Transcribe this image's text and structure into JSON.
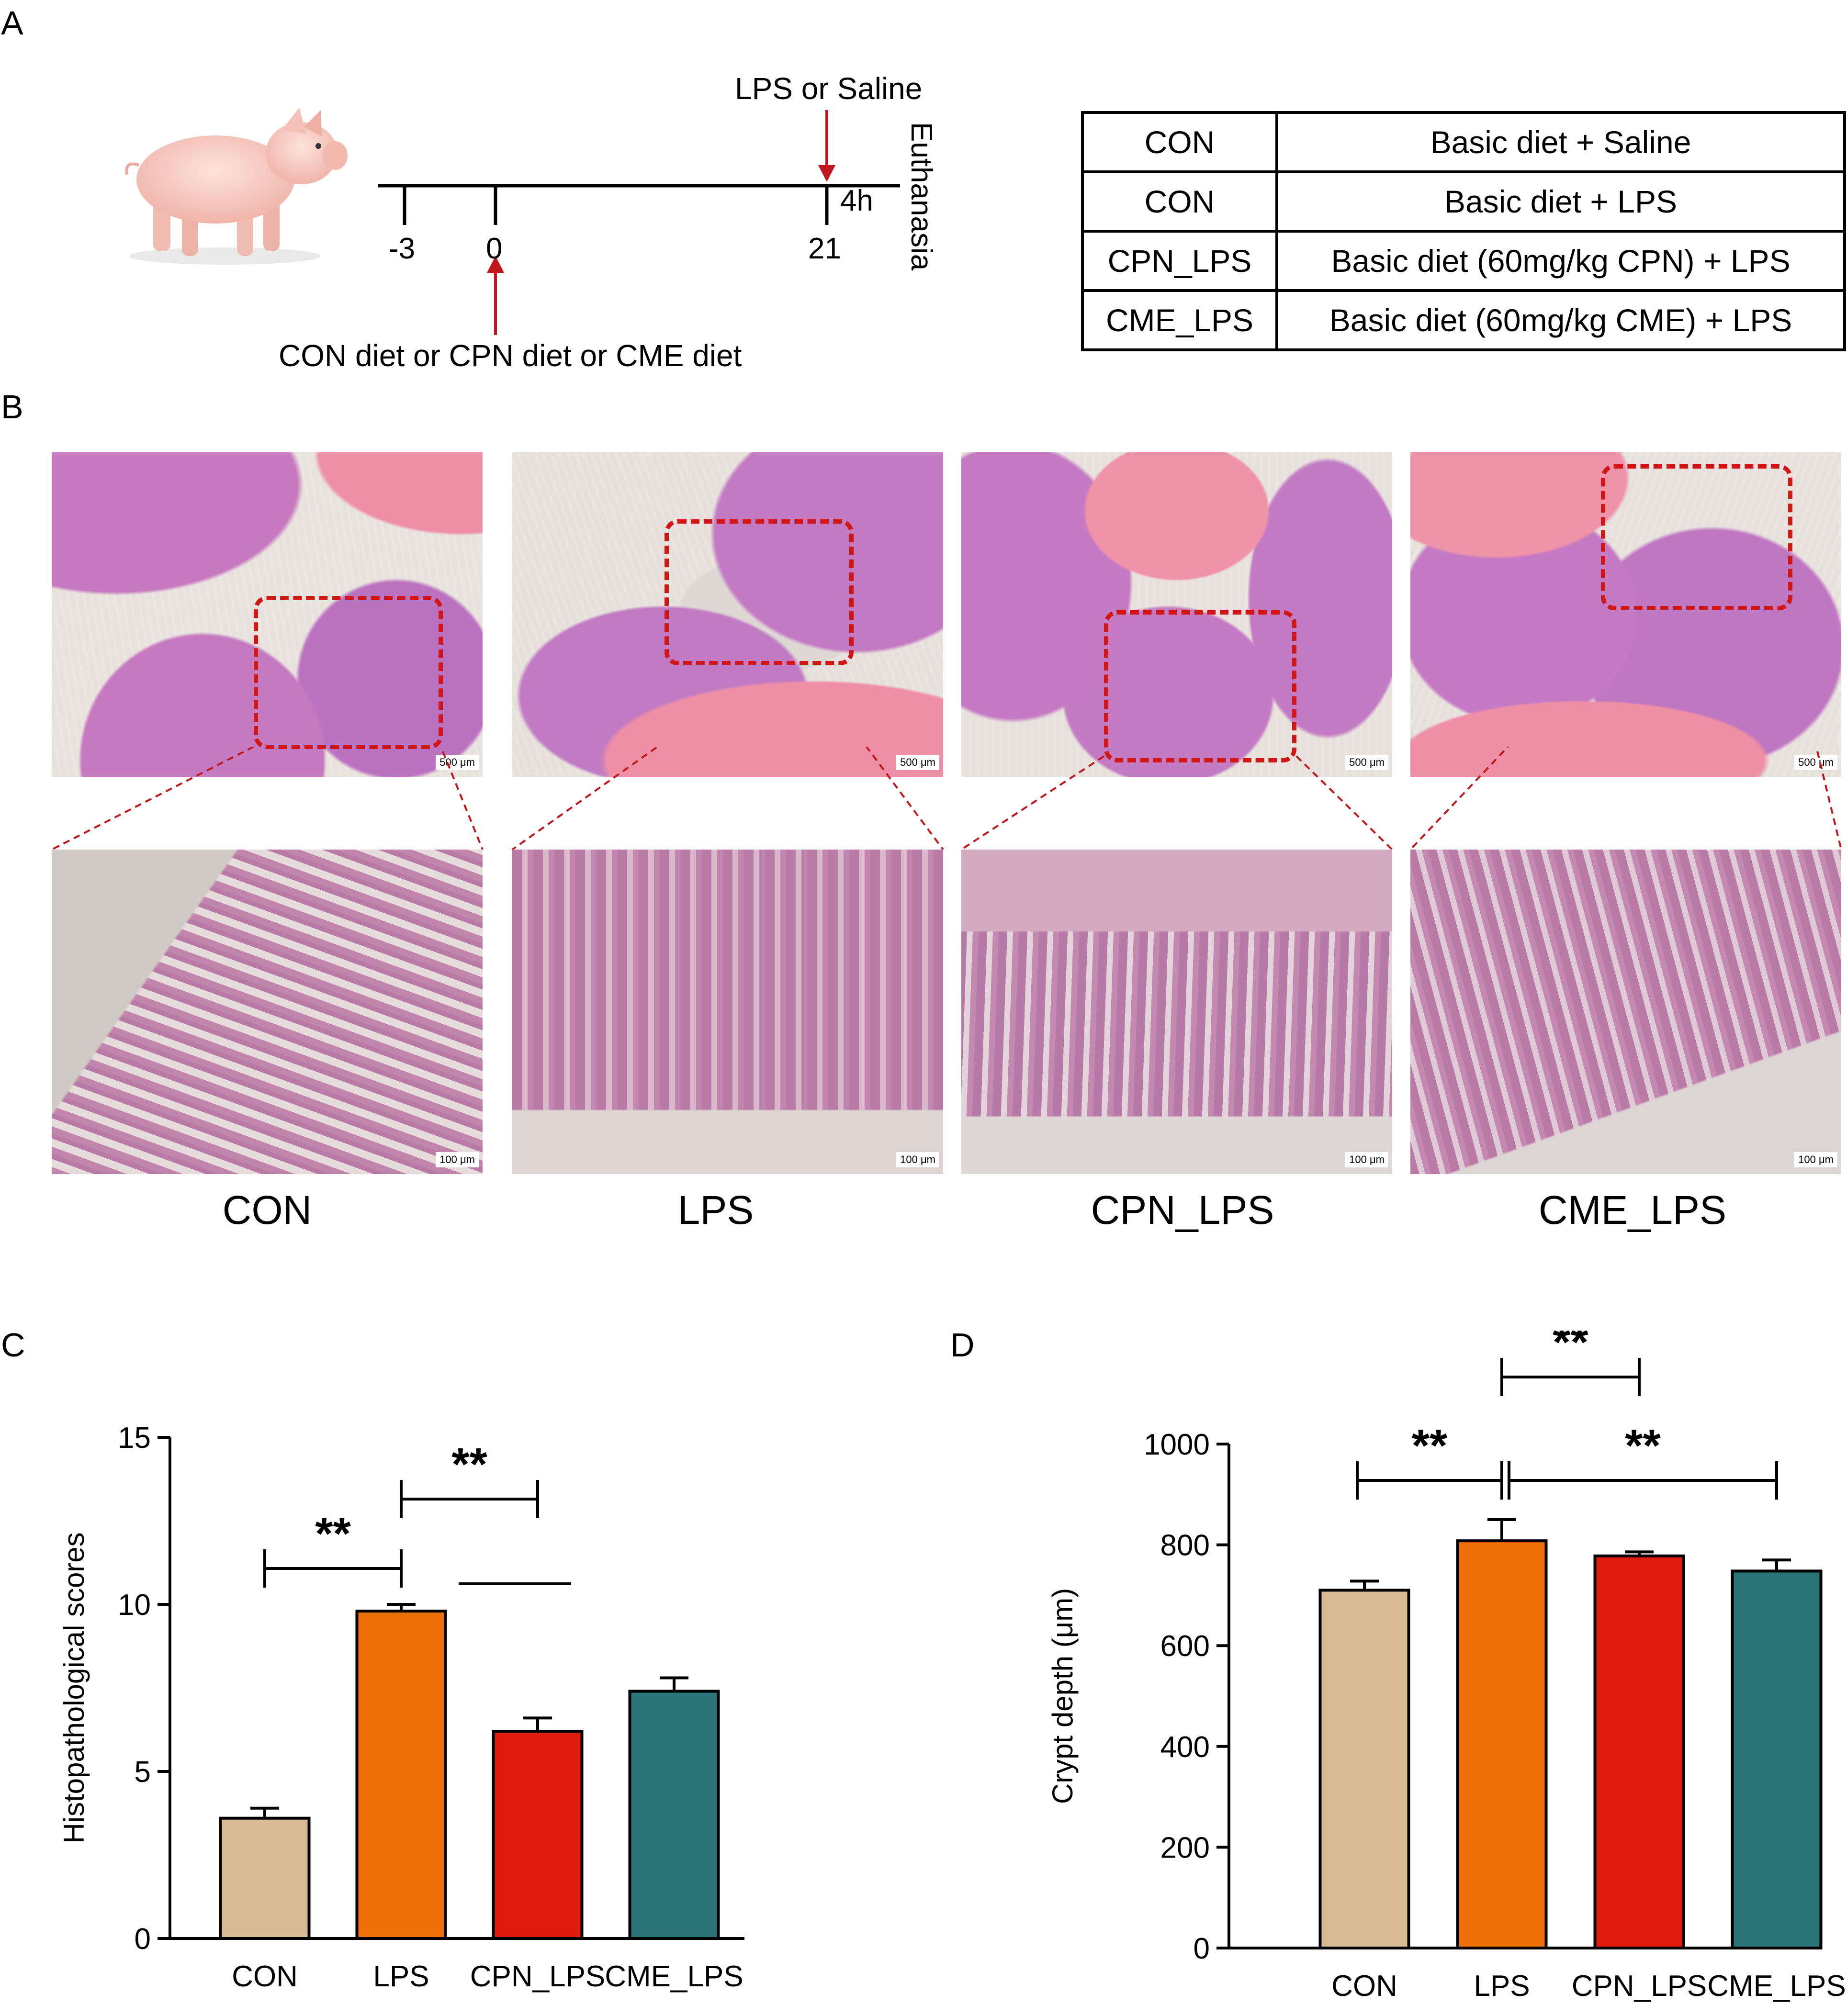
{
  "panels": {
    "a": "A",
    "b": "B",
    "c": "C",
    "d": "D"
  },
  "timeline": {
    "top_label": "LPS or Saline",
    "bottom_label": "CON diet or CPN diet or CME diet",
    "ticks": [
      "-3",
      "0",
      "21"
    ],
    "interval_label": "4h",
    "end_label": "Euthanasia",
    "arrow_color": "#c0161c"
  },
  "groups_table": {
    "rows": [
      {
        "group": "CON",
        "treatment": "Basic diet + Saline"
      },
      {
        "group": "CON",
        "treatment": "Basic diet +  LPS"
      },
      {
        "group": "CPN_LPS",
        "treatment": "Basic diet (60mg/kg CPN) + LPS"
      },
      {
        "group": "CME_LPS",
        "treatment": "Basic diet (60mg/kg CME) + LPS"
      }
    ]
  },
  "histology": {
    "groups": [
      "CON",
      "LPS",
      "CPN_LPS",
      "CME_LPS"
    ],
    "scale_low_mag": "500 μm",
    "scale_high_mag": "100 μm",
    "roi_color": "#d11616"
  },
  "chart_data": [
    {
      "type": "bar",
      "categories": [
        "CON",
        "LPS",
        "CPN_LPS",
        "CME_LPS"
      ],
      "values": [
        3.6,
        9.8,
        6.2,
        7.4
      ],
      "errors": [
        0.3,
        0.2,
        0.4,
        0.4
      ],
      "ylabel": "Histopathological scores",
      "ylim": [
        0,
        15
      ],
      "yticks": [
        "0",
        "5",
        "10",
        "15"
      ],
      "colors": [
        "#d8bc96",
        "#ef7009",
        "#e01b0e",
        "#2a7477"
      ],
      "significance": [
        {
          "from": "CON",
          "to": "LPS",
          "label": "**"
        },
        {
          "from": "LPS",
          "to": "CPN_LPS",
          "label": "**"
        },
        {
          "from": "CPN_LPS",
          "to": "CME_LPS",
          "label": ""
        }
      ]
    },
    {
      "type": "bar",
      "categories": [
        "CON",
        "LPS",
        "CPN_LPS",
        "CME_LPS"
      ],
      "values": [
        710,
        808,
        778,
        748
      ],
      "errors": [
        18,
        42,
        8,
        22
      ],
      "ylabel": "Crypt depth (μm)",
      "ylim": [
        0,
        1000
      ],
      "yticks": [
        "0",
        "200",
        "400",
        "600",
        "800",
        "1000"
      ],
      "colors": [
        "#d8bc96",
        "#ef7009",
        "#e01b0e",
        "#2a7477"
      ],
      "significance": [
        {
          "from": "LPS",
          "to": "CPN_LPS",
          "label": "**"
        },
        {
          "from": "CON",
          "to": "LPS",
          "label": "**"
        },
        {
          "from": "LPS",
          "to": "CME_LPS",
          "label": "**"
        }
      ]
    }
  ]
}
